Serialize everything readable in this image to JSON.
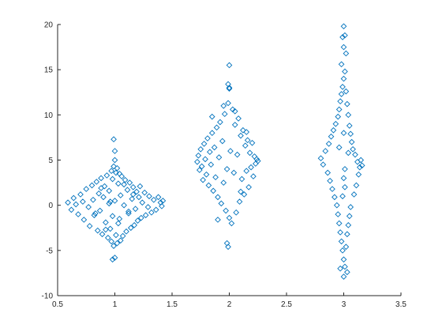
{
  "chart_data": {
    "type": "scatter",
    "title": "",
    "xlabel": "",
    "ylabel": "",
    "xlim": [
      0.5,
      3.5
    ],
    "ylim": [
      -10,
      20
    ],
    "grid": false,
    "legend": "none",
    "marker": "diamond",
    "color": "#0072BD",
    "x_ticks": [
      "0.5",
      "1",
      "1.5",
      "2",
      "2.5",
      "3",
      "3.5"
    ],
    "y_ticks": [
      "-10",
      "-5",
      "0",
      "5",
      "10",
      "15",
      "20"
    ],
    "series": [
      {
        "x": [
          0.59,
          0.62,
          0.64,
          0.66,
          0.68,
          0.7,
          0.72,
          0.73,
          0.75,
          0.77,
          0.78,
          0.8,
          0.81,
          0.82,
          0.84,
          0.85,
          0.86,
          0.87,
          0.88,
          0.89,
          0.9,
          0.91,
          0.92,
          0.93,
          0.94,
          0.95,
          0.95,
          0.96,
          0.97,
          0.97,
          0.98,
          0.98,
          0.99,
          0.99,
          1.0,
          1.0,
          1.0,
          1.01,
          1.01,
          1.02,
          1.02,
          1.03,
          1.03,
          1.04,
          1.05,
          1.05,
          1.06,
          1.07,
          1.08,
          1.09,
          1.1,
          1.11,
          1.12,
          1.13,
          1.14,
          1.15,
          1.16,
          1.17,
          1.18,
          1.19,
          1.2,
          1.21,
          1.22,
          1.23,
          1.24,
          1.26,
          1.27,
          1.29,
          1.3,
          1.32,
          1.34,
          1.36,
          1.38,
          1.4,
          1.41,
          1.42,
          0.83,
          0.88,
          0.92,
          0.96,
          1.04,
          1.08,
          1.12,
          1.16,
          0.99,
          1.0,
          0.98
        ],
        "y": [
          0.3,
          -0.5,
          0.8,
          0.1,
          -1.0,
          1.2,
          0.4,
          -1.6,
          1.8,
          -0.2,
          -2.3,
          2.2,
          0.6,
          -1.1,
          2.6,
          -2.8,
          1.3,
          -0.6,
          3.0,
          -3.2,
          0.9,
          2.1,
          -1.9,
          3.3,
          -3.6,
          0.2,
          1.6,
          -2.6,
          3.8,
          -4.0,
          2.9,
          -1.2,
          4.3,
          -4.5,
          5.0,
          -5.8,
          0.5,
          3.6,
          -3.3,
          4.1,
          -4.2,
          2.4,
          -2.0,
          3.5,
          -3.9,
          1.1,
          3.2,
          -3.4,
          0.0,
          2.8,
          -2.9,
          1.7,
          -0.9,
          2.5,
          -2.5,
          0.7,
          2.0,
          -2.2,
          -0.4,
          1.5,
          -1.7,
          0.9,
          2.1,
          -1.4,
          0.3,
          1.4,
          -1.1,
          -0.2,
          1.0,
          -0.8,
          0.6,
          -0.5,
          0.9,
          0.3,
          -0.1,
          0.5,
          -0.9,
          1.9,
          -2.7,
          0.4,
          -1.5,
          2.3,
          -0.7,
          1.2,
          7.3,
          6.0,
          -6.0
        ]
      },
      {
        "x": [
          1.72,
          1.73,
          1.74,
          1.75,
          1.76,
          1.77,
          1.78,
          1.79,
          1.8,
          1.81,
          1.82,
          1.83,
          1.84,
          1.85,
          1.86,
          1.87,
          1.88,
          1.89,
          1.9,
          1.91,
          1.92,
          1.93,
          1.94,
          1.95,
          1.96,
          1.97,
          1.98,
          1.99,
          2.0,
          2.0,
          2.01,
          2.02,
          2.03,
          2.04,
          2.05,
          2.06,
          2.07,
          2.08,
          2.09,
          2.1,
          2.11,
          2.12,
          2.13,
          2.14,
          2.15,
          2.16,
          2.17,
          2.18,
          2.19,
          2.2,
          2.21,
          2.22,
          2.23,
          2.24,
          2.25,
          1.85,
          1.95,
          2.05,
          2.15,
          1.9,
          2.1,
          2.0,
          1.98,
          1.99,
          1.99,
          2.0
        ],
        "y": [
          4.8,
          5.5,
          3.9,
          6.2,
          4.3,
          2.8,
          6.8,
          5.1,
          3.4,
          7.4,
          2.2,
          5.9,
          4.5,
          8.0,
          1.6,
          6.4,
          3.1,
          8.6,
          0.9,
          5.3,
          9.2,
          0.2,
          7.1,
          2.5,
          10.1,
          -0.6,
          4.0,
          11.3,
          -1.4,
          12.9,
          6.0,
          -2.0,
          10.6,
          3.6,
          8.9,
          -0.8,
          5.6,
          9.6,
          0.4,
          7.7,
          2.9,
          8.3,
          1.2,
          6.6,
          3.8,
          7.2,
          2.0,
          5.8,
          4.2,
          6.9,
          3.2,
          5.4,
          4.6,
          5.1,
          4.9,
          9.8,
          11.0,
          10.4,
          8.1,
          -1.6,
          1.5,
          15.5,
          -4.2,
          -4.6,
          13.4,
          13.0
        ]
      },
      {
        "x": [
          2.8,
          2.82,
          2.84,
          2.86,
          2.87,
          2.88,
          2.89,
          2.9,
          2.91,
          2.92,
          2.93,
          2.94,
          2.95,
          2.95,
          2.96,
          2.96,
          2.97,
          2.97,
          2.98,
          2.98,
          2.99,
          2.99,
          3.0,
          3.0,
          3.0,
          3.01,
          3.01,
          3.01,
          3.02,
          3.02,
          3.03,
          3.03,
          3.04,
          3.04,
          3.05,
          3.05,
          3.06,
          3.06,
          3.07,
          3.08,
          3.09,
          3.1,
          3.11,
          3.12,
          3.13,
          3.14,
          3.15,
          3.16,
          2.98,
          3.02,
          3.0,
          2.99,
          3.01,
          3.0,
          2.97,
          3.03,
          2.96,
          3.04,
          3.0,
          3.01,
          2.99,
          3.0
        ],
        "y": [
          5.2,
          4.5,
          6.0,
          3.6,
          6.8,
          2.7,
          7.6,
          1.8,
          8.3,
          0.9,
          9.0,
          0.0,
          9.8,
          -1.0,
          10.6,
          -2.0,
          11.5,
          -3.0,
          12.3,
          -4.0,
          13.1,
          -5.0,
          14.0,
          -6.0,
          3.0,
          14.8,
          -6.8,
          2.0,
          12.6,
          -4.6,
          11.2,
          -3.2,
          10.0,
          -2.2,
          8.8,
          -1.2,
          7.9,
          -0.2,
          7.0,
          6.2,
          1.2,
          5.6,
          2.2,
          4.8,
          3.4,
          4.2,
          5.0,
          4.4,
          15.6,
          16.8,
          17.5,
          18.6,
          18.8,
          19.8,
          -7.0,
          -7.4,
          6.4,
          5.8,
          -7.9,
          4.0,
          1.0,
          8.0
        ]
      }
    ]
  }
}
